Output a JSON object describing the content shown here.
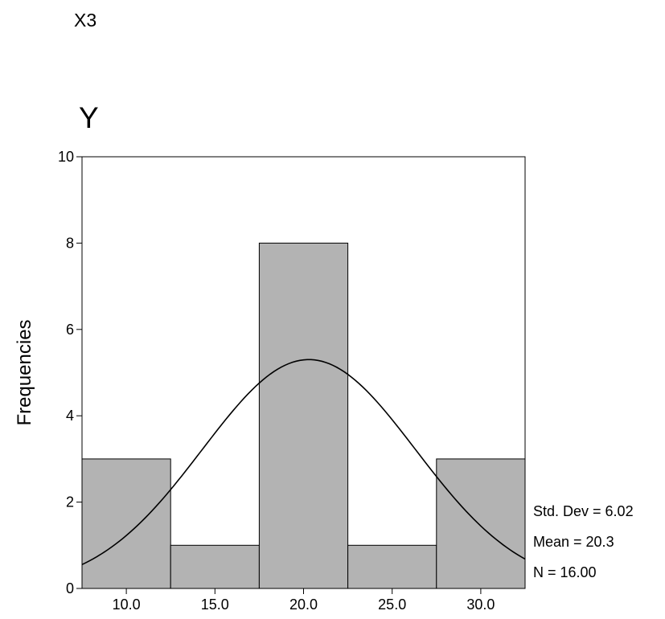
{
  "page_label": "X3",
  "chart_data": {
    "type": "bar",
    "title": "Y",
    "xlabel": "",
    "ylabel": "Frequencies",
    "categories": [
      "10.0",
      "15.0",
      "20.0",
      "25.0",
      "30.0"
    ],
    "values": [
      3,
      1,
      8,
      1,
      3
    ],
    "bin_centers": [
      10,
      15,
      20,
      25,
      30
    ],
    "bin_width": 5,
    "xlim": [
      7.5,
      32.5
    ],
    "ylim": [
      0,
      10
    ],
    "yticks": [
      0,
      2,
      4,
      6,
      8,
      10
    ],
    "normal_curve": {
      "mean": 20.3,
      "std_dev": 6.02,
      "n": 16
    },
    "bar_color": "#b3b3b3",
    "grid": false,
    "stats": {
      "std_dev": "Std. Dev = 6.02",
      "mean": "Mean = 20.3",
      "n": "N = 16.00"
    }
  }
}
